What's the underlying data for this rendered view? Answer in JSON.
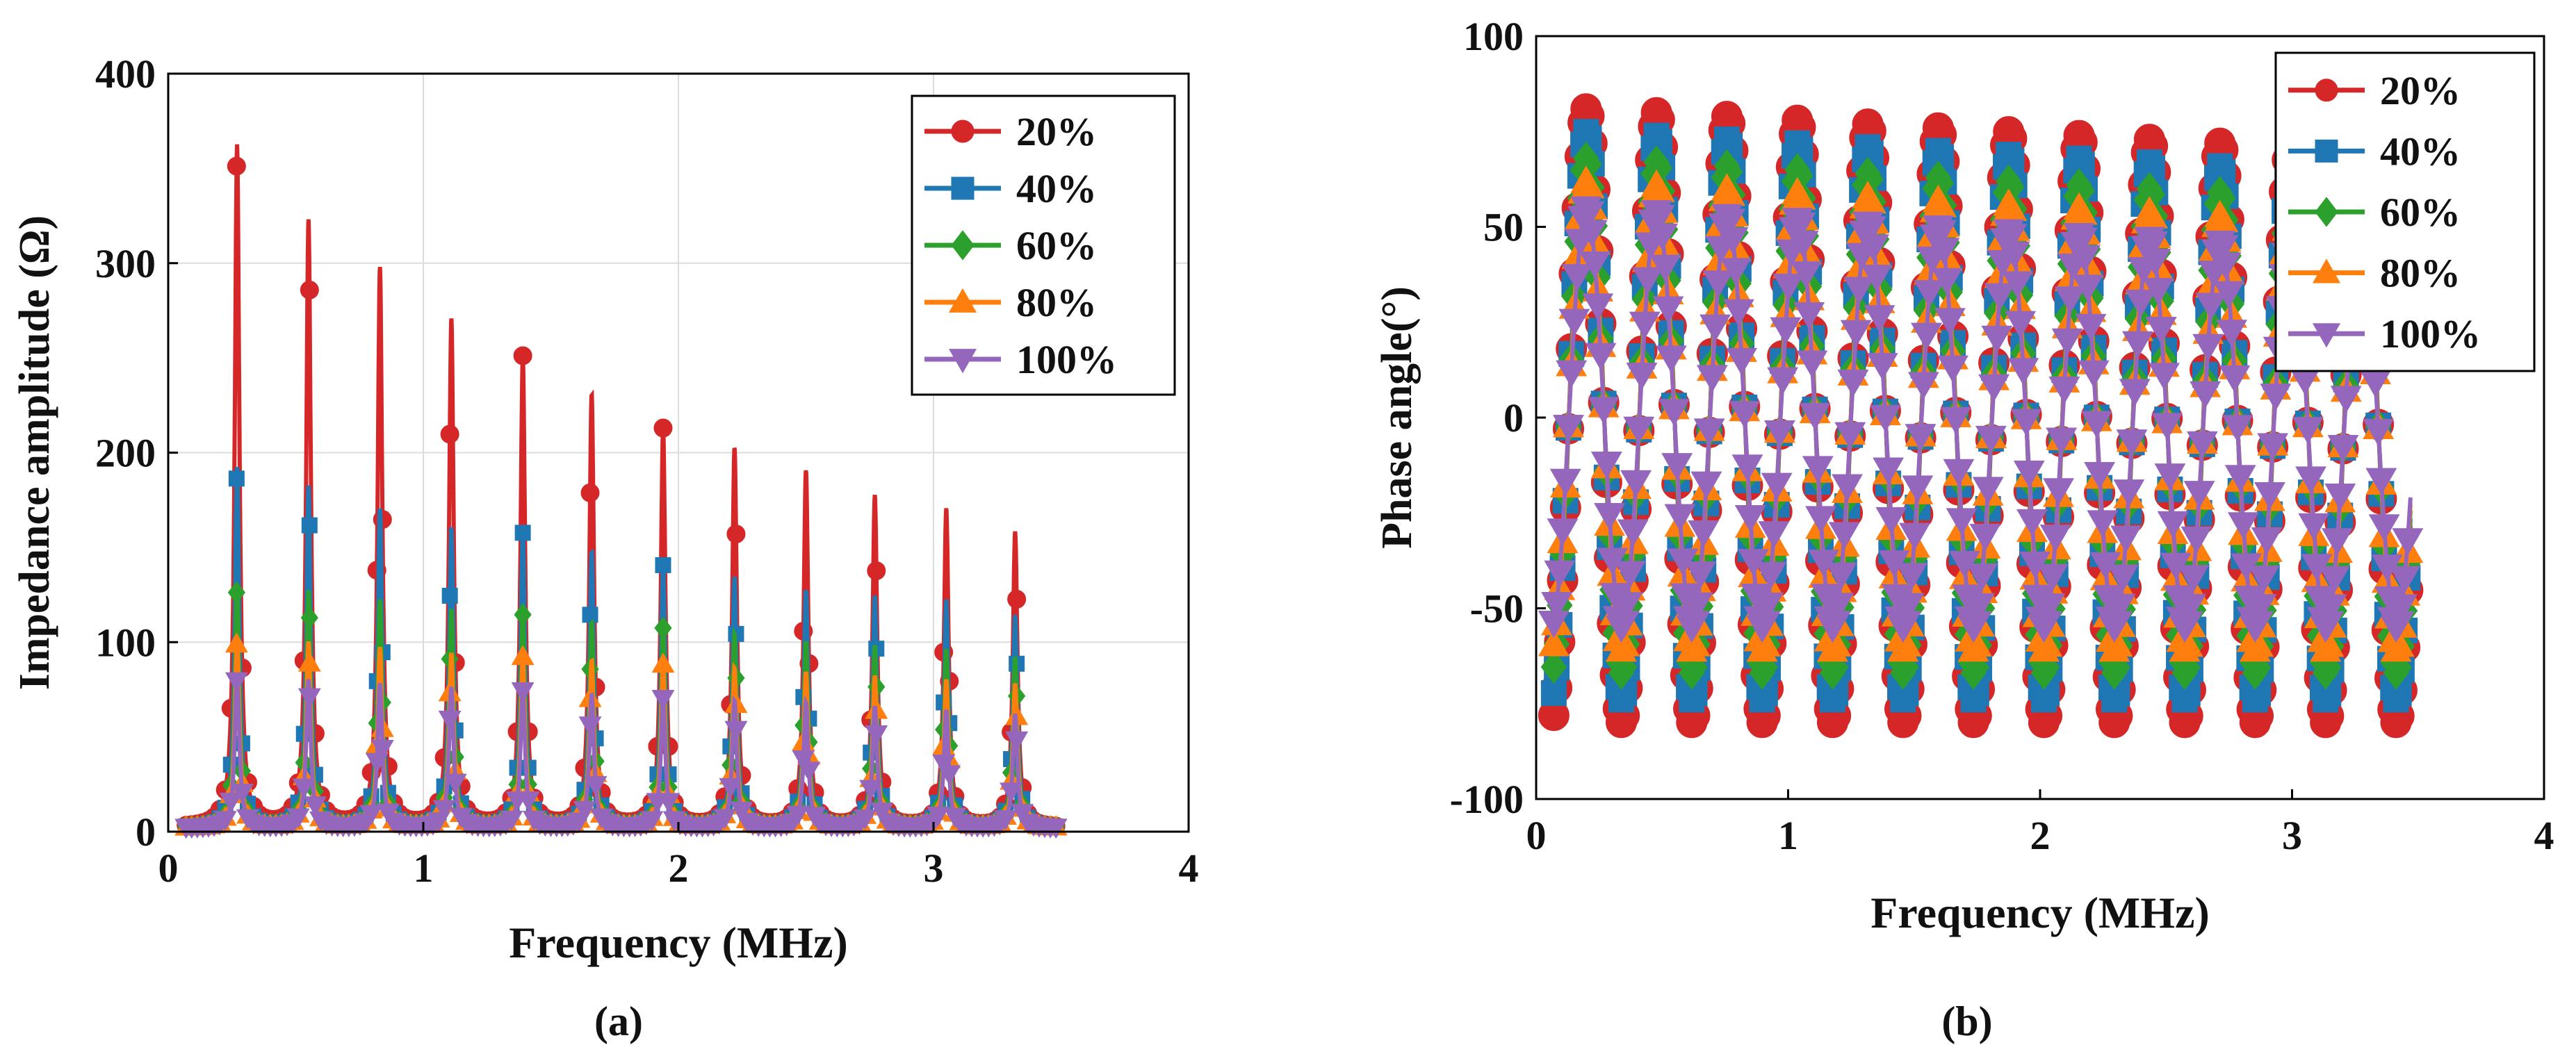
{
  "figure": {
    "panels": [
      {
        "letter": "(a)",
        "chart": 0
      },
      {
        "letter": "(b)",
        "chart": 1
      }
    ]
  },
  "colors": {
    "20%": "#D62728",
    "40%": "#1F77B4",
    "60%": "#2CA02C",
    "80%": "#FF7F0E",
    "100%": "#9467BD"
  },
  "chart_data": [
    {
      "id": "a",
      "type": "line",
      "title": "",
      "xlabel": "Frequency (MHz)",
      "ylabel": "Impedance amplitude (Ω)",
      "xlim": [
        0,
        4
      ],
      "ylim": [
        0,
        400
      ],
      "xticks": [
        0,
        1,
        2,
        3,
        4
      ],
      "xtick_labels": [
        "0",
        "1",
        "2",
        "3",
        "4"
      ],
      "yticks": [
        0,
        100,
        200,
        300,
        400
      ],
      "ytick_labels": [
        "0",
        "100",
        "200",
        "300",
        "400"
      ],
      "grid": true,
      "box": true,
      "legend_position": "top-right",
      "x_range_data": [
        0.07,
        3.5
      ],
      "resonance_frequencies_mhz": [
        0.27,
        0.55,
        0.83,
        1.11,
        1.39,
        1.66,
        1.94,
        2.22,
        2.5,
        2.77,
        3.05,
        3.32
      ],
      "series": [
        {
          "name": "20%",
          "marker": "circle",
          "peak_values": [
            360,
            320,
            295,
            268,
            248,
            228,
            210,
            200,
            188,
            175,
            168,
            156
          ]
        },
        {
          "name": "40%",
          "marker": "square",
          "peak_values": [
            190,
            180,
            168,
            158,
            155,
            145,
            138,
            132,
            125,
            122,
            120,
            112
          ]
        },
        {
          "name": "60%",
          "marker": "diamond",
          "peak_values": [
            128,
            125,
            120,
            115,
            112,
            108,
            105,
            102,
            98,
            96,
            94,
            90
          ]
        },
        {
          "name": "80%",
          "marker": "triangle-up",
          "peak_values": [
            100,
            98,
            95,
            92,
            90,
            88,
            86,
            84,
            82,
            80,
            78,
            76
          ]
        },
        {
          "name": "100%",
          "marker": "triangle-down",
          "peak_values": [
            80,
            78,
            76,
            74,
            72,
            70,
            68,
            67,
            66,
            64,
            62,
            60
          ]
        }
      ]
    },
    {
      "id": "b",
      "type": "line",
      "title": "",
      "xlabel": "Frequency (MHz)",
      "ylabel": "Phase angle(°)",
      "xlim": [
        0,
        4
      ],
      "ylim": [
        -100,
        100
      ],
      "xticks": [
        0,
        1,
        2,
        3,
        4
      ],
      "xtick_labels": [
        "0",
        "1",
        "2",
        "3",
        "4"
      ],
      "yticks": [
        -100,
        -50,
        0,
        50,
        100
      ],
      "ytick_labels": [
        "-100",
        "-50",
        "0",
        "50",
        "100"
      ],
      "grid": false,
      "box": true,
      "legend_position": "top-right",
      "x_range_data": [
        0.07,
        3.47
      ],
      "max_phase_frequencies_mhz": [
        0.2,
        0.48,
        0.76,
        1.04,
        1.32,
        1.6,
        1.87,
        2.15,
        2.43,
        2.71,
        2.99,
        3.27
      ],
      "series": [
        {
          "name": "20%",
          "marker": "circle",
          "max_phase": [
            81,
            80,
            79,
            78,
            77,
            76,
            75,
            74,
            73,
            72,
            71,
            70
          ],
          "min_phase": -80
        },
        {
          "name": "40%",
          "marker": "square",
          "max_phase": [
            75,
            74,
            73,
            72,
            71,
            70,
            69,
            68,
            67,
            66,
            65,
            64
          ],
          "min_phase": -74
        },
        {
          "name": "60%",
          "marker": "diamond",
          "max_phase": [
            68,
            67,
            66,
            65,
            64,
            63,
            62,
            61,
            60,
            59,
            58,
            57
          ],
          "min_phase": -67
        },
        {
          "name": "80%",
          "marker": "triangle-up",
          "max_phase": [
            62,
            61,
            60,
            59,
            58,
            57,
            56,
            55,
            54,
            53,
            52,
            51
          ],
          "min_phase": -61
        },
        {
          "name": "100%",
          "marker": "triangle-down",
          "max_phase": [
            55,
            54,
            53,
            52,
            51,
            50,
            49,
            48,
            47,
            46,
            45,
            44
          ],
          "min_phase": -55
        }
      ]
    }
  ]
}
